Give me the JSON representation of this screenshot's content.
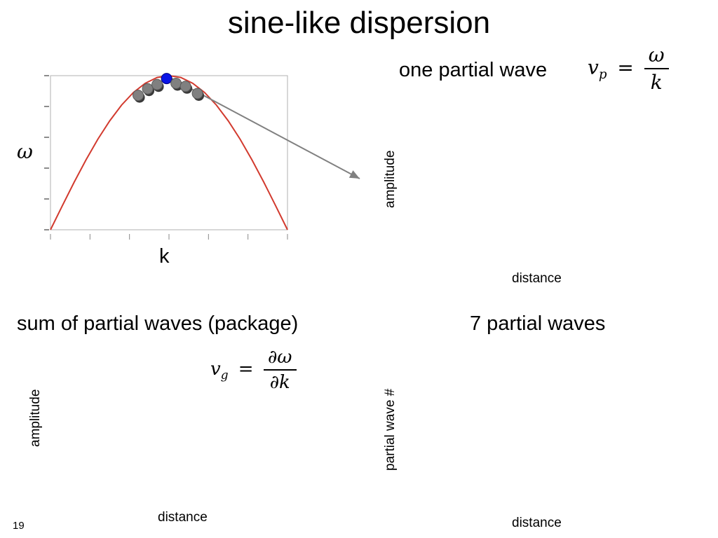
{
  "slide": {
    "title": "sine-like dispersion",
    "page_number": "19"
  },
  "panels": {
    "one_partial_wave": {
      "title": "one partial wave",
      "ylabel": "amplitude",
      "xlabel": "distance",
      "formula": {
        "lhs": "v",
        "lhs_sub": "p",
        "eq": "=",
        "numerator": "ω",
        "denominator": "k"
      }
    },
    "package": {
      "title": "sum of partial waves (package)",
      "ylabel": "amplitude",
      "xlabel": "distance",
      "formula": {
        "lhs": "v",
        "lhs_sub": "g",
        "eq": "=",
        "numerator": "∂ω",
        "denominator": "∂k"
      }
    },
    "seven_partial_waves": {
      "title": "7 partial waves",
      "ylabel": "partial wave #",
      "xlabel": "distance"
    }
  },
  "chart_data": {
    "type": "line",
    "xlabel": "k",
    "ylabel": "ω",
    "curve_color": "#d23a2e",
    "point_color": "#808080",
    "highlight_color": "#0a14e6",
    "arrow_color": "#808080",
    "xlim": [
      0,
      1
    ],
    "ylim": [
      0,
      1
    ],
    "grid": false,
    "series": [
      {
        "x": [
          0.0,
          0.05,
          0.1,
          0.15,
          0.2,
          0.25,
          0.3,
          0.35,
          0.4,
          0.45,
          0.5,
          0.55,
          0.6,
          0.65,
          0.7,
          0.75,
          0.8,
          0.85,
          0.9,
          0.95,
          1.0
        ],
        "y": [
          0.0,
          0.156,
          0.309,
          0.454,
          0.588,
          0.707,
          0.809,
          0.891,
          0.951,
          0.988,
          1.0,
          0.988,
          0.951,
          0.891,
          0.809,
          0.707,
          0.588,
          0.454,
          0.309,
          0.156,
          0.0
        ]
      }
    ],
    "points": {
      "x": [
        0.37,
        0.41,
        0.45,
        0.49,
        0.53,
        0.57,
        0.62
      ]
    },
    "highlight_index": 3
  }
}
